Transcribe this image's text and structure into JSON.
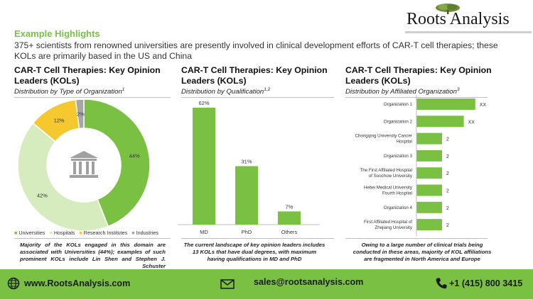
{
  "brand": {
    "name": "Roots Analysis"
  },
  "header": {
    "title": "Example Highlights",
    "intro": "375+ scientists from renowned universities are presently involved in clinical development efforts of CAR-T cell therapies; these KOLs are primarily based in the US and China"
  },
  "panels": [
    {
      "title": "CAR-T Cell Therapies: Key Opinion Leaders (KOLs)",
      "subtitle": "Distribution by Type of Organization",
      "subtitle_sup": "1",
      "caption": "Majority of the KOLs engaged in this domain are associated with Universities (44%); examples of such prominent KOLs include Lin Shen and Stephen J. Schuster"
    },
    {
      "title": "CAR-T Cell Therapies: Key Opinion Leaders (KOLs)",
      "subtitle": "Distribution by Qualification",
      "subtitle_sup": "1,2",
      "caption": "The current landscape of key opinion leaders includes 13 KOLs that have dual degrees, with maximum having qualifications in MD and PhD"
    },
    {
      "title": "CAR-T Cell Therapies: Key Opinion Leaders (KOLs)",
      "subtitle": "Distribution by Affiliated Organization",
      "subtitle_sup": "3",
      "caption": "Owing to a large number of clinical trials being conducted in these areas, majority of KOL affiliations are fragmented in North America and Europe"
    }
  ],
  "chart_data": [
    {
      "type": "pie",
      "style": "donut",
      "categories": [
        "Universities",
        "Hospitals",
        "Research Institutes",
        "Industries"
      ],
      "values": [
        44,
        42,
        12,
        2
      ],
      "labels": [
        "44%",
        "42%",
        "12%",
        "2%"
      ],
      "colors": [
        "#7ac143",
        "#d6ecbe",
        "#f6c830",
        "#a6a6a6"
      ],
      "legend": "bottom",
      "center_icon": "university-building-icon"
    },
    {
      "type": "bar",
      "orientation": "vertical",
      "categories": [
        "MD",
        "PhD",
        "Others"
      ],
      "values": [
        62,
        31,
        7
      ],
      "labels": [
        "62%",
        "31%",
        "7%"
      ],
      "color": "#7ac143",
      "ylim": [
        0,
        62
      ]
    },
    {
      "type": "bar",
      "orientation": "horizontal",
      "categories": [
        "Organization 1",
        "Organization 2",
        "Chongqing University Cancer Hospital",
        "Organization 3",
        "The First Affiliated Hospital of Soochow University",
        "Hebei Medical University Fourth Hospital",
        "Organization 4",
        "First Affiliated Hospital of Zhejiang University"
      ],
      "values": [
        null,
        null,
        2,
        2,
        2,
        2,
        2,
        2
      ],
      "labels": [
        "XX",
        "XX",
        "2",
        "2",
        "2",
        "2",
        "2",
        "2"
      ],
      "relative_lengths": [
        2.3,
        1.85,
        1,
        1,
        1,
        1,
        1,
        1
      ],
      "color": "#7ac143"
    }
  ],
  "footer": {
    "website": "www.RootsAnalysis.com",
    "email": "sales@rootsanalysis.com",
    "phone": "+1 (415) 800 3415"
  }
}
